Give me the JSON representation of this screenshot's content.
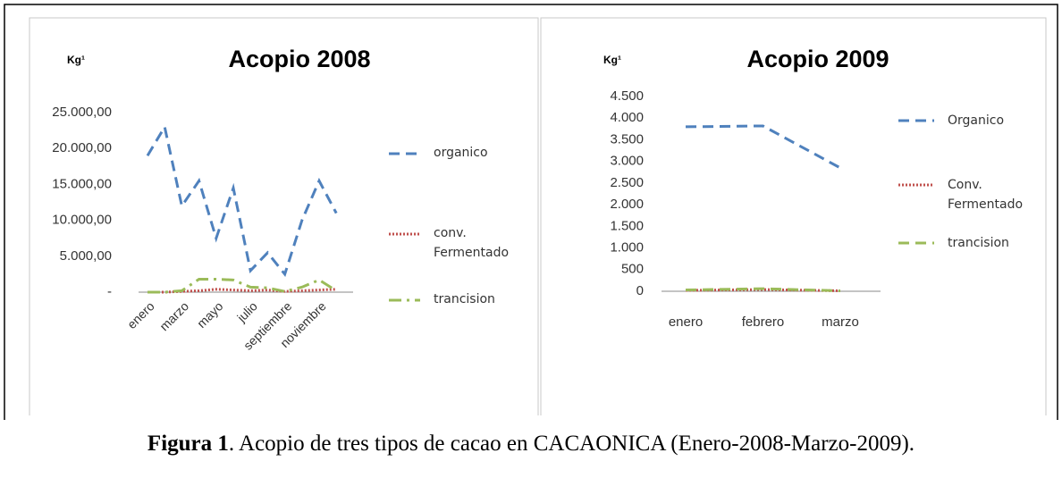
{
  "chart_data": [
    {
      "type": "line",
      "title": "Acopio 2008",
      "y_label": "Kg¹",
      "categories": [
        "enero",
        null,
        "marzo",
        null,
        "mayo",
        null,
        "julio",
        null,
        "septiembre",
        null,
        "noviembre",
        null
      ],
      "ylim": [
        0,
        25000
      ],
      "yticks": [
        {
          "value": 0,
          "label": "-"
        },
        {
          "value": 5000,
          "label": "5.000,00"
        },
        {
          "value": 10000,
          "label": "10.000,00"
        },
        {
          "value": 15000,
          "label": "15.000,00"
        },
        {
          "value": 20000,
          "label": "20.000,00"
        },
        {
          "value": 25000,
          "label": "25.000,00"
        }
      ],
      "series": [
        {
          "name": "organico",
          "color": "#4f81bd",
          "style": "dashed",
          "values": [
            19000,
            23000,
            12000,
            15500,
            7500,
            14500,
            3000,
            5500,
            2500,
            10000,
            15500,
            11000
          ]
        },
        {
          "name": "conv. Fermentado",
          "color": "#c0504d",
          "style": "dotted",
          "values": [
            0,
            0,
            100,
            200,
            400,
            300,
            200,
            300,
            100,
            200,
            300,
            400
          ]
        },
        {
          "name": "trancision",
          "color": "#9bbb59",
          "style": "dashdot",
          "values": [
            0,
            0,
            200,
            1800,
            1800,
            1700,
            700,
            600,
            100,
            700,
            1700,
            200
          ]
        }
      ]
    },
    {
      "type": "line",
      "title": "Acopio 2009",
      "y_label": "Kg¹",
      "categories": [
        "enero",
        "febrero",
        "marzo"
      ],
      "ylim": [
        0,
        4500
      ],
      "yticks": [
        0,
        {
          "value": 500,
          "label": "500"
        },
        {
          "value": 1000,
          "label": "1.000"
        },
        {
          "value": 1500,
          "label": "1.500"
        },
        {
          "value": 2000,
          "label": "2.000"
        },
        {
          "value": 2500,
          "label": "2.500"
        },
        {
          "value": 3000,
          "label": "3.000"
        },
        {
          "value": 3500,
          "label": "3.500"
        },
        {
          "value": 4000,
          "label": "4.000"
        },
        {
          "value": 4500,
          "label": "4.500"
        }
      ],
      "series": [
        {
          "name": "Organico",
          "color": "#4f81bd",
          "style": "dashed",
          "values": [
            3800,
            3820,
            2850
          ]
        },
        {
          "name": "Conv. Fermentado",
          "color": "#c0504d",
          "style": "dotted",
          "values": [
            20,
            40,
            10
          ]
        },
        {
          "name": "trancision",
          "color": "#9bbb59",
          "style": "dashed",
          "values": [
            30,
            60,
            10
          ]
        }
      ]
    }
  ],
  "caption": {
    "label": "Figura 1",
    "text": ". Acopio de tres tipos de cacao en CACAONICA (Enero-2008-Marzo-2009)."
  }
}
